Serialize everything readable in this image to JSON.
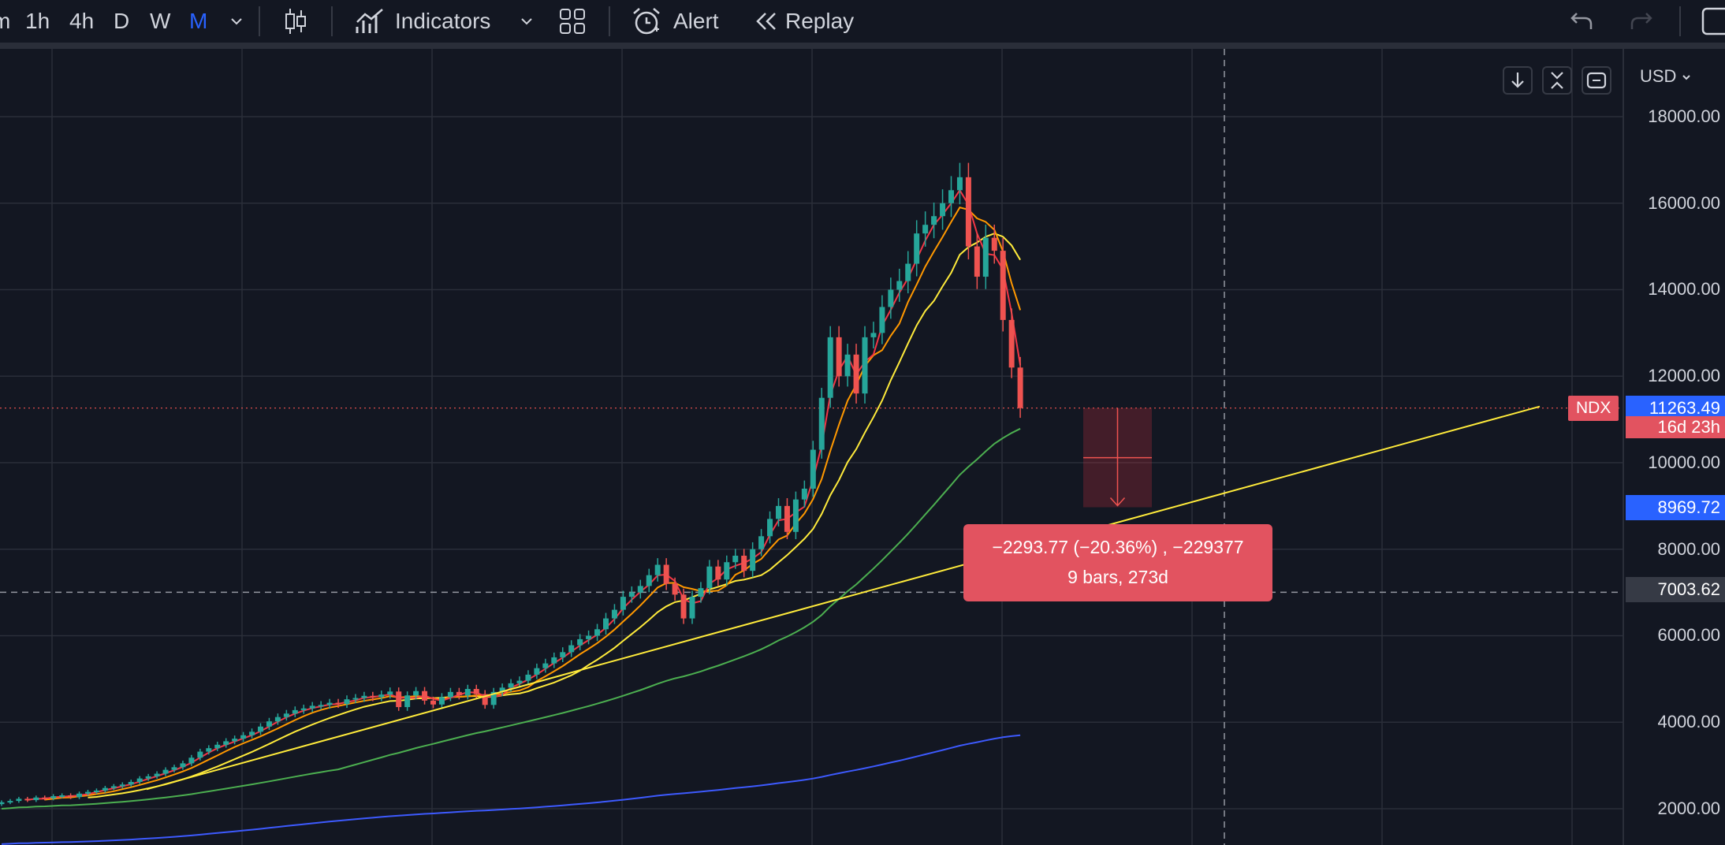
{
  "toolbar": {
    "intervals": [
      {
        "label": "m",
        "active": false
      },
      {
        "label": "1h",
        "active": false
      },
      {
        "label": "4h",
        "active": false
      },
      {
        "label": "D",
        "active": false
      },
      {
        "label": "W",
        "active": false
      },
      {
        "label": "M",
        "active": true
      }
    ],
    "indicators_label": "Indicators",
    "alert_label": "Alert",
    "replay_label": "Replay",
    "icons": [
      "chevron-down-icon",
      "candlestick-icon",
      "chevron-down-icon",
      "layout-grid-icon",
      "alarm-clock-icon",
      "rewind-icon",
      "undo-icon",
      "redo-icon"
    ]
  },
  "price_axis": {
    "currency": "USD",
    "ticks": [
      "18000.00",
      "16000.00",
      "14000.00",
      "12000.00",
      "10000.00",
      "8000.00",
      "6000.00",
      "4000.00",
      "2000.00"
    ],
    "last_price": "11263.49",
    "countdown": "16d 23h",
    "target_price": "8969.72",
    "crosshair_price": "7003.62"
  },
  "symbol": "NDX",
  "measurement": {
    "line1": "−2293.77 (−20.36%) , −229377",
    "line2": "9 bars, 273d"
  },
  "colors": {
    "background": "#131722",
    "grid": "#2a2e39",
    "up": "#26a69a",
    "down": "#ef5350",
    "accent": "#2962ff"
  },
  "chart_data": {
    "type": "candlestick",
    "symbol": "NDX",
    "interval": "M",
    "ylim": [
      1200,
      19000
    ],
    "yticks": [
      2000,
      4000,
      6000,
      8000,
      10000,
      12000,
      14000,
      16000,
      18000
    ],
    "last_price": 11263.49,
    "close_series": [
      2150,
      2180,
      2230,
      2200,
      2260,
      2240,
      2290,
      2310,
      2270,
      2350,
      2390,
      2420,
      2480,
      2520,
      2560,
      2620,
      2700,
      2750,
      2810,
      2900,
      2960,
      3050,
      3180,
      3320,
      3400,
      3480,
      3560,
      3620,
      3700,
      3780,
      3900,
      4020,
      4120,
      4200,
      4280,
      4320,
      4380,
      4400,
      4450,
      4420,
      4530,
      4560,
      4610,
      4580,
      4640,
      4710,
      4350,
      4620,
      4720,
      4500,
      4410,
      4580,
      4700,
      4620,
      4770,
      4650,
      4400,
      4700,
      4800,
      4900,
      4960,
      5100,
      5250,
      5360,
      5500,
      5620,
      5780,
      5920,
      6000,
      6150,
      6400,
      6600,
      6900,
      7000,
      7150,
      7400,
      7640,
      7200,
      6950,
      6400,
      6900,
      7100,
      7600,
      7300,
      7700,
      7850,
      7500,
      8000,
      8300,
      8700,
      9000,
      8400,
      9150,
      9400,
      10300,
      11500,
      12900,
      12000,
      12500,
      11600,
      12900,
      13000,
      13600,
      14000,
      14200,
      14600,
      15300,
      15500,
      15700,
      16000,
      16300,
      16600,
      15000,
      14300,
      15200,
      14900,
      13300,
      12200,
      11263
    ]
  }
}
